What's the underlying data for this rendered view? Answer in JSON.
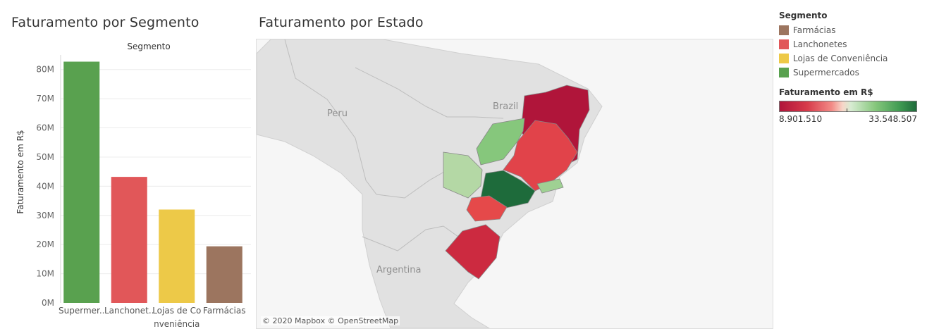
{
  "bar_panel": {
    "title": "Faturamento por Segmento"
  },
  "map_panel": {
    "title": "Faturamento por Estado",
    "attribution": "© 2020 Mapbox © OpenStreetMap",
    "country_labels": [
      "Peru",
      "Brazil",
      "Argentina"
    ],
    "land_color": "#e1e1e1",
    "water_color": "#f6f6f6",
    "states": [
      {
        "name": "Bahia",
        "color": "#b0153a"
      },
      {
        "name": "Minas Gerais",
        "color": "#e1434a"
      },
      {
        "name": "Goiás",
        "color": "#86c77c"
      },
      {
        "name": "Mato Grosso do Sul",
        "color": "#b4d8a5"
      },
      {
        "name": "São Paulo",
        "color": "#1e6b3b"
      },
      {
        "name": "Paraná",
        "color": "#e5494a"
      },
      {
        "name": "Rio de Janeiro",
        "color": "#9fd193"
      },
      {
        "name": "Rio Grande do Sul",
        "color": "#cc2a40"
      }
    ]
  },
  "legend": {
    "segment_title": "Segmento",
    "segment_items": [
      {
        "label": "Farmácias",
        "color": "#9c755f"
      },
      {
        "label": "Lanchonetes",
        "color": "#e15759"
      },
      {
        "label": "Lojas de Conveniência",
        "color": "#edc948"
      },
      {
        "label": "Supermercados",
        "color": "#59a14f"
      }
    ],
    "color_title": "Faturamento em R$",
    "color_min": "8.901.510",
    "color_max": "33.548.507"
  },
  "chart_data": [
    {
      "type": "bar",
      "title": "Faturamento por Segmento",
      "header": "Segmento",
      "xlabel": "",
      "ylabel": "Faturamento em R$",
      "categories": [
        "Supermercados",
        "Lanchonetes",
        "Lojas de Conveniência",
        "Farmácias"
      ],
      "tick_labels": [
        [
          "Supermer.."
        ],
        [
          "Lanchonet.."
        ],
        [
          "Lojas de Co",
          "nveniência"
        ],
        [
          "Farmácias"
        ]
      ],
      "values": [
        82700000,
        43200000,
        32000000,
        19400000
      ],
      "colors": [
        "#59a14f",
        "#e15759",
        "#edc948",
        "#9c755f"
      ],
      "ylim": [
        0,
        85000000
      ],
      "yticks": [
        0,
        10000000,
        20000000,
        30000000,
        40000000,
        50000000,
        60000000,
        70000000,
        80000000
      ],
      "ytick_labels": [
        "0M",
        "10M",
        "20M",
        "30M",
        "40M",
        "50M",
        "60M",
        "70M",
        "80M"
      ],
      "grid": true
    }
  ]
}
